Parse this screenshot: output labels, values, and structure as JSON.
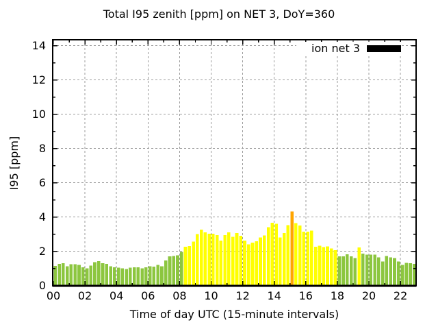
{
  "chart_data": {
    "type": "bar",
    "title": "Total I95 zenith [ppm] on NET 3, DoY=360",
    "xlabel": "Time of day UTC (15-minute intervals)",
    "ylabel": "I95 [ppm]",
    "legend": {
      "label": "ion net 3",
      "swatch_color": "#000000",
      "position": "top-right-inside"
    },
    "grid": true,
    "interval_minutes": 15,
    "xlim_hours": [
      0,
      23
    ],
    "ylim": [
      0,
      14
    ],
    "x_tick_hours": [
      0,
      2,
      4,
      6,
      8,
      10,
      12,
      14,
      16,
      18,
      20,
      22
    ],
    "x_tick_labels": [
      "00",
      "02",
      "04",
      "06",
      "08",
      "10",
      "12",
      "14",
      "16",
      "18",
      "20",
      "22"
    ],
    "y_ticks": [
      0,
      2,
      4,
      6,
      8,
      10,
      12,
      14
    ],
    "colors": {
      "green": "#8CC63F",
      "yellow": "#FFFF00",
      "orange": "#FFA500",
      "grid": "#9a9a9a",
      "axis": "#000000",
      "background": "#FFFFFF"
    },
    "bars": {
      "times": [
        "00:00",
        "00:15",
        "00:30",
        "00:45",
        "01:00",
        "01:15",
        "01:30",
        "01:45",
        "02:00",
        "02:15",
        "02:30",
        "02:45",
        "03:00",
        "03:15",
        "03:30",
        "03:45",
        "04:00",
        "04:15",
        "04:30",
        "04:45",
        "05:00",
        "05:15",
        "05:30",
        "05:45",
        "06:00",
        "06:15",
        "06:30",
        "06:45",
        "07:00",
        "07:15",
        "07:30",
        "07:45",
        "08:00",
        "08:15",
        "08:30",
        "08:45",
        "09:00",
        "09:15",
        "09:30",
        "09:45",
        "10:00",
        "10:15",
        "10:30",
        "10:45",
        "11:00",
        "11:15",
        "11:30",
        "11:45",
        "12:00",
        "12:15",
        "12:30",
        "12:45",
        "13:00",
        "13:15",
        "13:30",
        "13:45",
        "14:00",
        "14:15",
        "14:30",
        "14:45",
        "15:00",
        "15:15",
        "15:30",
        "15:45",
        "16:00",
        "16:15",
        "16:30",
        "16:45",
        "17:00",
        "17:15",
        "17:30",
        "17:45",
        "18:00",
        "18:15",
        "18:30",
        "18:45",
        "19:00",
        "19:15",
        "19:30",
        "19:45",
        "20:00",
        "20:15",
        "20:30",
        "20:45",
        "21:00",
        "21:15",
        "21:30",
        "21:45",
        "22:00",
        "22:15",
        "22:30",
        "22:45"
      ],
      "values": [
        1.15,
        1.27,
        1.3,
        1.13,
        1.25,
        1.25,
        1.2,
        1.07,
        1.0,
        1.17,
        1.36,
        1.43,
        1.3,
        1.27,
        1.13,
        1.07,
        1.05,
        1.0,
        0.96,
        1.04,
        1.07,
        1.07,
        1.0,
        1.07,
        1.13,
        1.1,
        1.2,
        1.13,
        1.47,
        1.7,
        1.73,
        1.77,
        1.96,
        2.27,
        2.3,
        2.56,
        3.0,
        3.27,
        3.11,
        3.03,
        3.03,
        2.94,
        2.63,
        2.94,
        3.11,
        2.84,
        3.07,
        2.9,
        2.63,
        2.4,
        2.5,
        2.58,
        2.8,
        2.93,
        3.4,
        3.67,
        3.6,
        2.8,
        3.07,
        3.53,
        4.33,
        3.65,
        3.5,
        3.14,
        3.14,
        3.2,
        2.27,
        2.33,
        2.24,
        2.29,
        2.16,
        2.07,
        1.7,
        1.7,
        1.82,
        1.7,
        1.6,
        2.23,
        1.87,
        1.8,
        1.8,
        1.8,
        1.64,
        1.4,
        1.73,
        1.64,
        1.6,
        1.4,
        1.2,
        1.33,
        1.3,
        1.27
      ],
      "color_keys": [
        "green",
        "green",
        "green",
        "green",
        "green",
        "green",
        "green",
        "green",
        "green",
        "green",
        "green",
        "green",
        "green",
        "green",
        "green",
        "green",
        "green",
        "green",
        "green",
        "green",
        "green",
        "green",
        "green",
        "green",
        "green",
        "green",
        "green",
        "green",
        "green",
        "green",
        "green",
        "green",
        "green",
        "yellow",
        "yellow",
        "yellow",
        "yellow",
        "yellow",
        "yellow",
        "yellow",
        "yellow",
        "yellow",
        "yellow",
        "yellow",
        "yellow",
        "yellow",
        "yellow",
        "yellow",
        "yellow",
        "yellow",
        "yellow",
        "yellow",
        "yellow",
        "yellow",
        "yellow",
        "yellow",
        "yellow",
        "yellow",
        "yellow",
        "yellow",
        "orange",
        "yellow",
        "yellow",
        "yellow",
        "yellow",
        "yellow",
        "yellow",
        "yellow",
        "yellow",
        "yellow",
        "yellow",
        "yellow",
        "green",
        "green",
        "green",
        "green",
        "green",
        "yellow",
        "green",
        "green",
        "green",
        "green",
        "green",
        "green",
        "green",
        "green",
        "green",
        "green",
        "green",
        "green",
        "green",
        "green"
      ]
    }
  }
}
